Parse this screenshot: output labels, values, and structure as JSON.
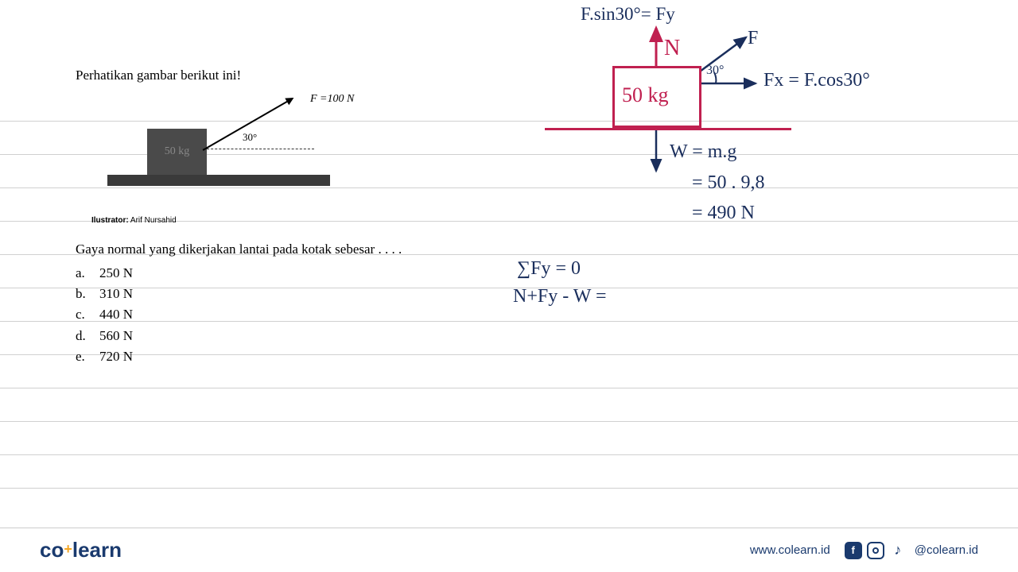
{
  "ruledLines": [
    152,
    194,
    236,
    278,
    320,
    362,
    404,
    446,
    488,
    530,
    572,
    614
  ],
  "question": {
    "title": "Perhatikan gambar berikut ini!",
    "boxLabel": "50 kg",
    "forceLabel": "F =100 N",
    "angleLabel": "30°",
    "illustratorPrefix": "Ilustrator:",
    "illustratorName": "Arif Nursahid",
    "text": "Gaya normal yang dikerjakan lantai pada kotak sebesar . . . .",
    "options": [
      {
        "letter": "a.",
        "value": "250 N"
      },
      {
        "letter": "b.",
        "value": "310 N"
      },
      {
        "letter": "c.",
        "value": "440 N"
      },
      {
        "letter": "d.",
        "value": "560 N"
      },
      {
        "letter": "e.",
        "value": "720 N"
      }
    ]
  },
  "handwriting": {
    "fsin": "F.sin30°= Fy",
    "N": "N",
    "F": "F",
    "thirty": "30°",
    "Fx": "Fx = F.cos30°",
    "boxMass": "50 kg",
    "Wexpr": "W = m.g",
    "Wcalc1": "= 50 . 9,8",
    "Wcalc2": "= 490 N",
    "sumFy": "∑Fy = 0",
    "equation": "N+Fy - W ="
  },
  "footer": {
    "logoA": "co",
    "logoB": "learn",
    "website": "www.colearn.id",
    "handle": "@colearn.id"
  },
  "colors": {
    "handwriting": "#1a2e5c",
    "red": "#c02050",
    "brand": "#1a3a6e",
    "accent": "#f5a623",
    "rule": "#d0d0d0"
  }
}
